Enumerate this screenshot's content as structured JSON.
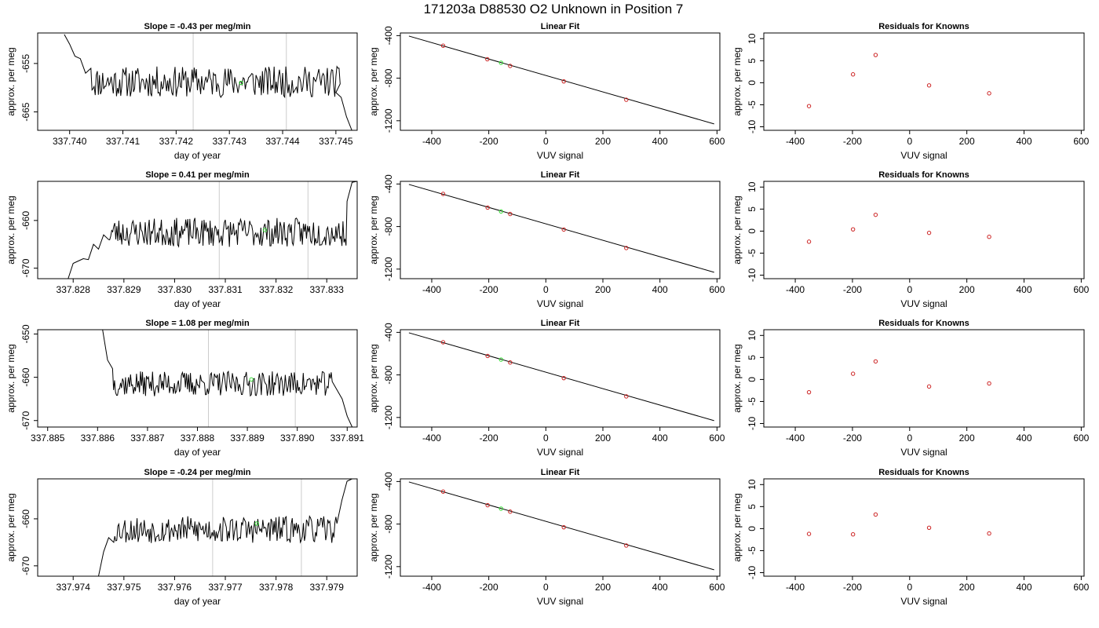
{
  "figure_title": "171203a     D88530   O2 Unknown in Position  7",
  "colors": {
    "line": "#000000",
    "known_point": "#cc2222",
    "unknown_point": "#33dd33",
    "marker_line": "#cccccc",
    "frame": "#000000"
  },
  "chart_data": [
    {
      "panel": "time",
      "row": 0,
      "type": "line",
      "title": "Slope =  -0.43  per meg/min",
      "xlabel": "day of year",
      "ylabel": "approx. per meg",
      "xlim": [
        337.7394,
        337.7454
      ],
      "ylim": [
        -668.8,
        -648.7
      ],
      "x_ticks": [
        "337.740",
        "337.741",
        "337.742",
        "337.743",
        "337.744",
        "337.745"
      ],
      "y_ticks": [
        "-655",
        "-665"
      ],
      "trace_start": 337.7404,
      "trace_end": 337.7451,
      "trace_level": -658.8,
      "noise": 2.0,
      "seed": 11,
      "head": [
        [
          337.7399,
          -649
        ],
        [
          337.74,
          -651
        ],
        [
          337.7401,
          -653.5
        ],
        [
          337.7402,
          -654
        ],
        [
          337.7403,
          -657
        ],
        [
          337.7404,
          -656
        ]
      ],
      "tail": [
        [
          337.745,
          -661
        ],
        [
          337.7451,
          -662
        ],
        [
          337.7452,
          -666
        ],
        [
          337.7453,
          -668.8
        ]
      ],
      "vlines": [
        337.74232,
        337.74407
      ],
      "unknown_point": [
        337.74322,
        -659
      ]
    },
    {
      "panel": "fit",
      "row": 0,
      "type": "scatter",
      "title": "Linear Fit",
      "xlabel": "VUV signal",
      "ylabel": "approx. per meg",
      "xlim": [
        -510,
        610
      ],
      "ylim": [
        -1290,
        -375
      ],
      "x_ticks": [
        -400,
        -200,
        0,
        200,
        400,
        600
      ],
      "y_ticks": [
        -400,
        -800,
        -1200
      ],
      "line": {
        "x1": -480,
        "y1": -404,
        "x2": 590,
        "y2": -1230
      },
      "knowns": [
        [
          -360,
          -495
        ],
        [
          -205,
          -622
        ],
        [
          -125,
          -685
        ],
        [
          63,
          -830
        ],
        [
          282,
          -1003
        ]
      ],
      "unknown": [
        -157,
        -655
      ]
    },
    {
      "panel": "residuals",
      "row": 0,
      "type": "scatter",
      "title": "Residuals for Knowns",
      "xlabel": "VUV signal",
      "ylabel": "approx. per meg",
      "xlim": [
        -510,
        610
      ],
      "ylim": [
        -10.8,
        11.3
      ],
      "x_ticks": [
        -400,
        -200,
        0,
        200,
        400,
        600
      ],
      "y_ticks": [
        -10,
        -5,
        0,
        5,
        10
      ],
      "points": [
        [
          -352,
          -5.3
        ],
        [
          -198,
          1.9
        ],
        [
          -119,
          6.3
        ],
        [
          68,
          -0.6
        ],
        [
          278,
          -2.4
        ]
      ]
    },
    {
      "panel": "time",
      "row": 1,
      "type": "line",
      "title": "Slope =  0.41  per meg/min",
      "xlabel": "day of year",
      "ylabel": "approx. per meg",
      "xlim": [
        337.8273,
        337.8336
      ],
      "ylim": [
        -672.2,
        -651.8
      ],
      "x_ticks": [
        "337.828",
        "337.829",
        "337.830",
        "337.831",
        "337.832",
        "337.833"
      ],
      "y_ticks": [
        "-660",
        "-670"
      ],
      "trace_start": 337.8287,
      "trace_end": 337.8334,
      "trace_level": -662.5,
      "noise": 1.9,
      "seed": 23,
      "head": [
        [
          337.8279,
          -672.2
        ],
        [
          337.828,
          -669
        ],
        [
          337.8281,
          -668.5
        ],
        [
          337.8282,
          -668
        ],
        [
          337.8283,
          -668.2
        ],
        [
          337.8284,
          -665
        ],
        [
          337.8285,
          -666
        ],
        [
          337.8286,
          -663
        ],
        [
          337.8287,
          -664
        ]
      ],
      "tail": [
        [
          337.8334,
          -656
        ],
        [
          337.8335,
          -652
        ],
        [
          337.8336,
          -651.8
        ]
      ],
      "vlines": [
        337.83088,
        337.83263
      ],
      "unknown_point": [
        337.83178,
        -662
      ]
    },
    {
      "panel": "fit",
      "row": 1,
      "type": "scatter",
      "title": "Linear Fit",
      "xlabel": "VUV signal",
      "ylabel": "approx. per meg",
      "xlim": [
        -510,
        610
      ],
      "ylim": [
        -1290,
        -375
      ],
      "x_ticks": [
        -400,
        -200,
        0,
        200,
        400,
        600
      ],
      "y_ticks": [
        -400,
        -800,
        -1200
      ],
      "line": {
        "x1": -480,
        "y1": -404,
        "x2": 590,
        "y2": -1230
      },
      "knowns": [
        [
          -360,
          -493
        ],
        [
          -204,
          -622
        ],
        [
          -125,
          -682
        ],
        [
          63,
          -828
        ],
        [
          282,
          -1002
        ]
      ],
      "unknown": [
        -157,
        -658
      ]
    },
    {
      "panel": "residuals",
      "row": 1,
      "type": "scatter",
      "title": "Residuals for Knowns",
      "xlabel": "VUV signal",
      "ylabel": "approx. per meg",
      "xlim": [
        -510,
        610
      ],
      "ylim": [
        -10.8,
        11.3
      ],
      "x_ticks": [
        -400,
        -200,
        0,
        200,
        400,
        600
      ],
      "y_ticks": [
        -10,
        -5,
        0,
        5,
        10
      ],
      "points": [
        [
          -352,
          -2.4
        ],
        [
          -198,
          0.4
        ],
        [
          -119,
          3.7
        ],
        [
          68,
          -0.4
        ],
        [
          278,
          -1.3
        ]
      ]
    },
    {
      "panel": "time",
      "row": 2,
      "type": "line",
      "title": "Slope =  1.08  per meg/min",
      "xlabel": "day of year",
      "ylabel": "approx. per meg",
      "xlim": [
        337.8848,
        337.8912
      ],
      "ylim": [
        -671.5,
        -649.0
      ],
      "x_ticks": [
        "337.885",
        "337.886",
        "337.887",
        "337.888",
        "337.889",
        "337.890",
        "337.891"
      ],
      "y_ticks": [
        "-650",
        "-660",
        "-670"
      ],
      "trace_start": 337.8863,
      "trace_end": 337.8907,
      "trace_level": -661.5,
      "noise": 1.8,
      "seed": 37,
      "head": [
        [
          337.8861,
          -649
        ],
        [
          337.8862,
          -656
        ],
        [
          337.8863,
          -658
        ]
      ],
      "tail": [
        [
          337.8907,
          -661
        ],
        [
          337.8908,
          -663
        ],
        [
          337.8909,
          -665
        ],
        [
          337.891,
          -669
        ],
        [
          337.8911,
          -671.5
        ]
      ],
      "vlines": [
        337.88822,
        337.88996
      ],
      "unknown_point": [
        337.88908,
        -660.5
      ]
    },
    {
      "panel": "fit",
      "row": 2,
      "type": "scatter",
      "title": "Linear Fit",
      "xlabel": "VUV signal",
      "ylabel": "approx. per meg",
      "xlim": [
        -510,
        610
      ],
      "ylim": [
        -1290,
        -375
      ],
      "x_ticks": [
        -400,
        -200,
        0,
        200,
        400,
        600
      ],
      "y_ticks": [
        -400,
        -800,
        -1200
      ],
      "line": {
        "x1": -480,
        "y1": -404,
        "x2": 590,
        "y2": -1230
      },
      "knowns": [
        [
          -360,
          -493
        ],
        [
          -204,
          -622
        ],
        [
          -125,
          -683
        ],
        [
          63,
          -830
        ],
        [
          282,
          -1002
        ]
      ],
      "unknown": [
        -157,
        -656
      ]
    },
    {
      "panel": "residuals",
      "row": 2,
      "type": "scatter",
      "title": "Residuals for Knowns",
      "xlabel": "VUV signal",
      "ylabel": "approx. per meg",
      "xlim": [
        -510,
        610
      ],
      "ylim": [
        -10.8,
        11.3
      ],
      "x_ticks": [
        -400,
        -200,
        0,
        200,
        400,
        600
      ],
      "y_ticks": [
        -10,
        -5,
        0,
        5,
        10
      ],
      "points": [
        [
          -352,
          -2.9
        ],
        [
          -198,
          1.3
        ],
        [
          -119,
          4.1
        ],
        [
          68,
          -1.6
        ],
        [
          278,
          -0.9
        ]
      ]
    },
    {
      "panel": "time",
      "row": 3,
      "type": "line",
      "title": "Slope =  -0.24  per meg/min",
      "xlabel": "day of year",
      "ylabel": "approx. per meg",
      "xlim": [
        337.9733,
        337.9796
      ],
      "ylim": [
        -672.2,
        -651.5
      ],
      "x_ticks": [
        "337.974",
        "337.975",
        "337.976",
        "337.977",
        "337.978",
        "337.979"
      ],
      "y_ticks": [
        "-660",
        "-670"
      ],
      "trace_start": 337.9748,
      "trace_end": 337.9792,
      "trace_level": -662.3,
      "noise": 1.8,
      "seed": 53,
      "head": [
        [
          337.9745,
          -672.2
        ],
        [
          337.9746,
          -667
        ],
        [
          337.9747,
          -664
        ],
        [
          337.9748,
          -665
        ]
      ],
      "tail": [
        [
          337.9792,
          -661
        ],
        [
          337.9793,
          -656
        ],
        [
          337.9794,
          -652
        ],
        [
          337.9795,
          -651.5
        ]
      ],
      "vlines": [
        337.97675,
        337.9785
      ],
      "unknown_point": [
        337.97762,
        -661
      ]
    },
    {
      "panel": "fit",
      "row": 3,
      "type": "scatter",
      "title": "Linear Fit",
      "xlabel": "VUV signal",
      "ylabel": "approx. per meg",
      "xlim": [
        -510,
        610
      ],
      "ylim": [
        -1290,
        -375
      ],
      "x_ticks": [
        -400,
        -200,
        0,
        200,
        400,
        600
      ],
      "y_ticks": [
        -400,
        -800,
        -1200
      ],
      "line": {
        "x1": -480,
        "y1": -404,
        "x2": 590,
        "y2": -1230
      },
      "knowns": [
        [
          -360,
          -495
        ],
        [
          -204,
          -623
        ],
        [
          -125,
          -683
        ],
        [
          63,
          -830
        ],
        [
          282,
          -1002
        ]
      ],
      "unknown": [
        -157,
        -655
      ]
    },
    {
      "panel": "residuals",
      "row": 3,
      "type": "scatter",
      "title": "Residuals for Knowns",
      "xlabel": "VUV signal",
      "ylabel": "approx. per meg",
      "xlim": [
        -510,
        610
      ],
      "ylim": [
        -10.8,
        11.3
      ],
      "x_ticks": [
        -400,
        -200,
        0,
        200,
        400,
        600
      ],
      "y_ticks": [
        -10,
        -5,
        0,
        5,
        10
      ],
      "points": [
        [
          -352,
          -1.2
        ],
        [
          -198,
          -1.3
        ],
        [
          -119,
          3.2
        ],
        [
          68,
          0.2
        ],
        [
          278,
          -1.1
        ]
      ]
    }
  ]
}
